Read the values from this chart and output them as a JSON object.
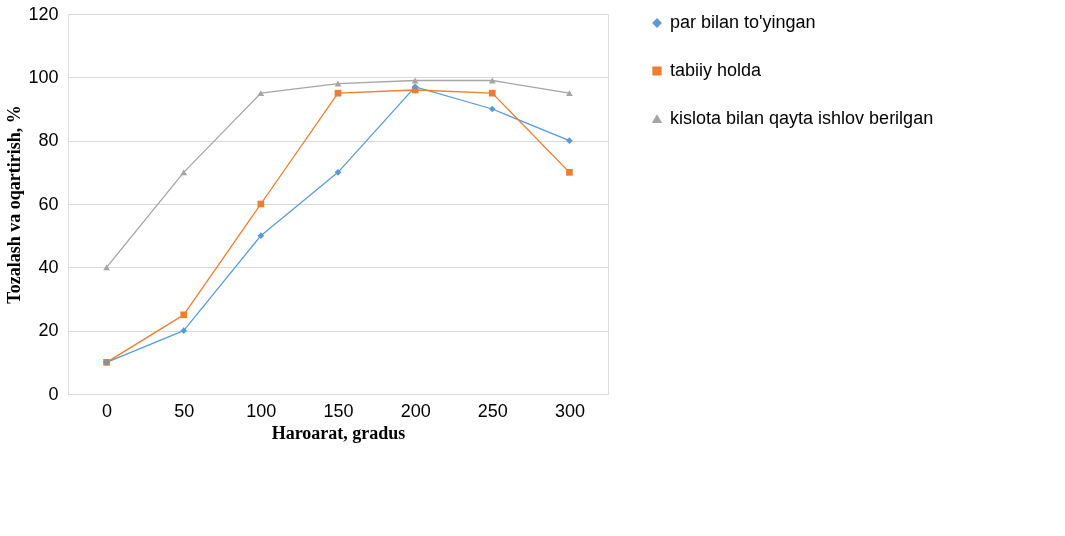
{
  "chart_data": {
    "type": "line",
    "xlabel": "Haroarat, gradus",
    "ylabel": "Tozalash va oqartirish,  %",
    "categories": [
      "0",
      "50",
      "100",
      "150",
      "200",
      "250",
      "300"
    ],
    "series": [
      {
        "name": "par bilan to'yingan",
        "color": "#5b9bd5",
        "marker": "diamond",
        "values": [
          10,
          20,
          50,
          70,
          97,
          90,
          80
        ]
      },
      {
        "name": "tabiiy holda",
        "color": "#ed7d31",
        "marker": "square",
        "values": [
          10,
          25,
          60,
          95,
          96,
          95,
          70
        ]
      },
      {
        "name": "kislota bilan qayta ishlov berilgan",
        "color": "#a5a5a5",
        "marker": "triangle",
        "values": [
          40,
          70,
          95,
          98,
          99,
          99,
          95
        ]
      }
    ],
    "ylim": [
      0,
      120
    ],
    "yticks": [
      0,
      20,
      40,
      60,
      80,
      100,
      120
    ],
    "grid": "y",
    "legend": "right"
  }
}
